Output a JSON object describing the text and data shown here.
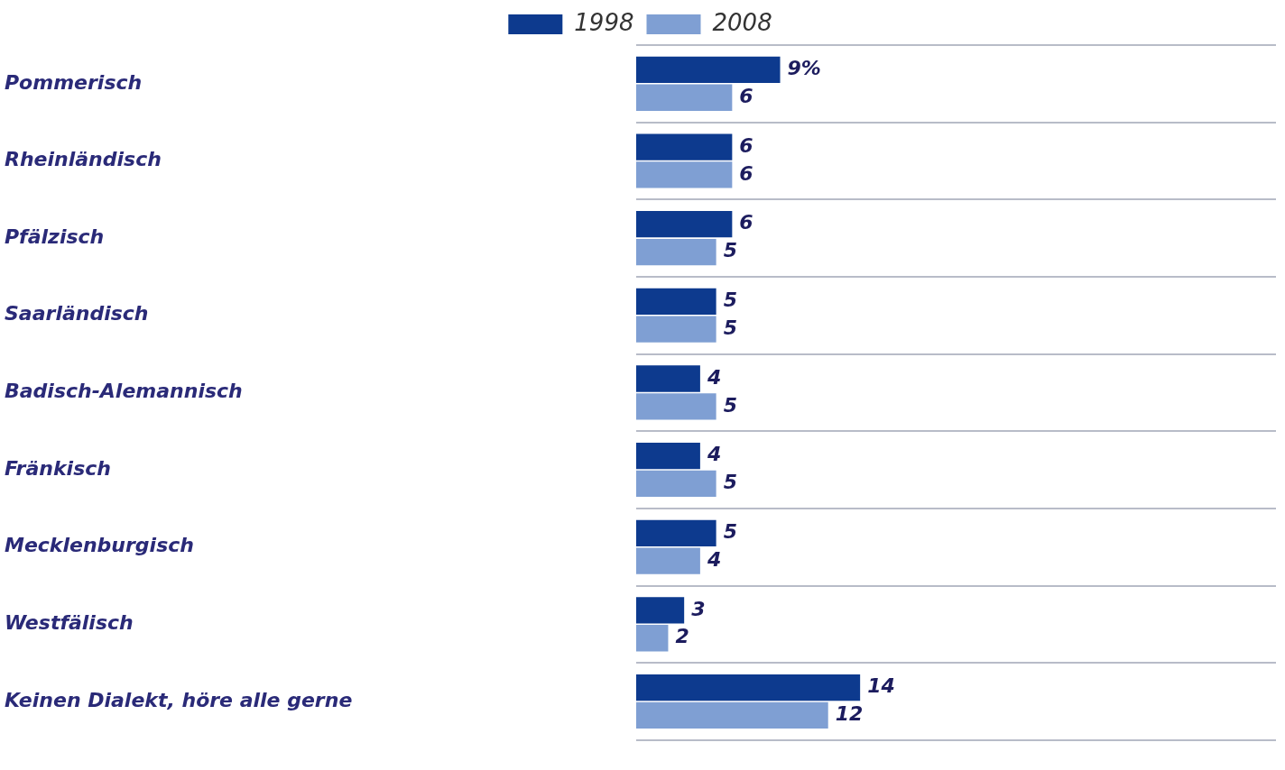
{
  "chart_data": {
    "type": "bar",
    "orientation": "horizontal",
    "categories": [
      "Pommerisch",
      "Rheinländisch",
      "Pfälzisch",
      "Saarländisch",
      "Badisch-Alemannisch",
      "Fränkisch",
      "Mecklenburgisch",
      "Westfälisch",
      "Keinen Dialekt, höre alle gerne"
    ],
    "series": [
      {
        "name": "1998",
        "color": "#0d3a8e",
        "values": [
          9,
          6,
          6,
          5,
          4,
          4,
          5,
          3,
          14
        ],
        "value_labels": [
          "9%",
          "6",
          "6",
          "5",
          "4",
          "4",
          "5",
          "3",
          "14"
        ]
      },
      {
        "name": "2008",
        "color": "#7f9fd3",
        "values": [
          6,
          6,
          5,
          5,
          5,
          5,
          4,
          2,
          12
        ],
        "value_labels": [
          "6",
          "6",
          "5",
          "5",
          "5",
          "5",
          "4",
          "2",
          "12"
        ]
      }
    ],
    "xlim": [
      0,
      40
    ],
    "tick_labels": "y",
    "grid": "y",
    "legend": "top"
  }
}
